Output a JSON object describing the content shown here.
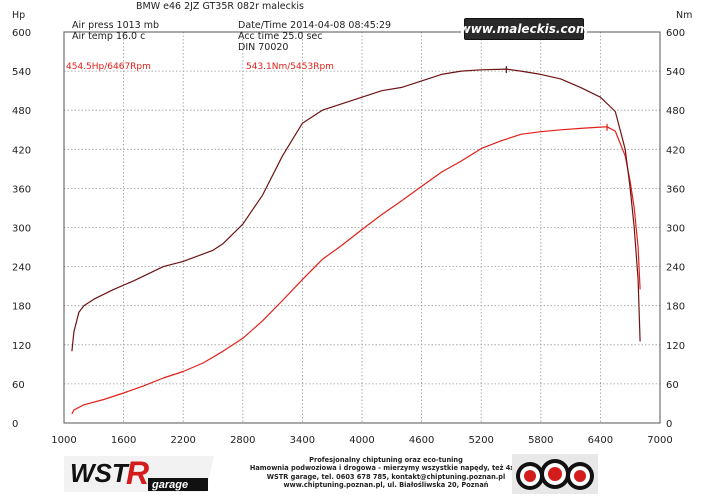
{
  "header": {
    "title": "BMW e46 2JZ GT35R 082r maleckis",
    "air_press": "Air press  1013 mb",
    "air_temp": "Air temp  16.0 c",
    "datetime": "Date/Time  2014-04-08 08:45:29",
    "acc_time": "Acc time  25.0 sec",
    "din": "DIN 70020",
    "site": "www.maleckis.com"
  },
  "axes": {
    "left_unit": "Hp",
    "right_unit": "Nm"
  },
  "peaks": {
    "hp": "454.5Hp/6467Rpm",
    "nm": "543.1Nm/5453Rpm"
  },
  "colors": {
    "hp": "#e0201a",
    "torque": "#6e1414",
    "grid": "#9a9a9a"
  },
  "chart_data": {
    "type": "line",
    "xlim": [
      1000,
      7000
    ],
    "ylim": [
      0,
      600
    ],
    "x_ticks": [
      1000,
      1600,
      2200,
      2800,
      3400,
      4000,
      4600,
      5200,
      5800,
      6400,
      7000
    ],
    "y_ticks": [
      0,
      60,
      120,
      180,
      240,
      300,
      360,
      420,
      480,
      540,
      600
    ],
    "grid": true,
    "series": [
      {
        "axis": "left",
        "x": [
          1080,
          1100,
          1200,
          1400,
          1600,
          1800,
          2000,
          2200,
          2400,
          2600,
          2800,
          3000,
          3200,
          3400,
          3600,
          3800,
          4000,
          4200,
          4400,
          4600,
          4800,
          5000,
          5200,
          5400,
          5600,
          5800,
          6000,
          6200,
          6400,
          6467,
          6550,
          6650,
          6700,
          6740,
          6780,
          6800
        ],
        "values": [
          14,
          20,
          28,
          36,
          46,
          57,
          69,
          79,
          92,
          110,
          130,
          157,
          188,
          220,
          251,
          273,
          297,
          320,
          341,
          363,
          385,
          402,
          421,
          433,
          443,
          447,
          450,
          452,
          454,
          454.5,
          448,
          410,
          370,
          330,
          270,
          205
        ]
      },
      {
        "axis": "right",
        "x": [
          1080,
          1100,
          1150,
          1200,
          1300,
          1500,
          1700,
          2000,
          2200,
          2500,
          2600,
          2800,
          3000,
          3200,
          3400,
          3600,
          3800,
          4000,
          4200,
          4400,
          4600,
          4800,
          5000,
          5200,
          5453,
          5600,
          5800,
          6000,
          6200,
          6400,
          6550,
          6650,
          6700,
          6740,
          6780,
          6800
        ],
        "values": [
          110,
          140,
          170,
          180,
          190,
          205,
          218,
          240,
          248,
          265,
          275,
          305,
          350,
          410,
          460,
          480,
          490,
          500,
          510,
          515,
          525,
          535,
          540,
          542,
          543.1,
          540,
          535,
          528,
          515,
          500,
          478,
          420,
          360,
          300,
          220,
          125
        ]
      }
    ]
  }
}
